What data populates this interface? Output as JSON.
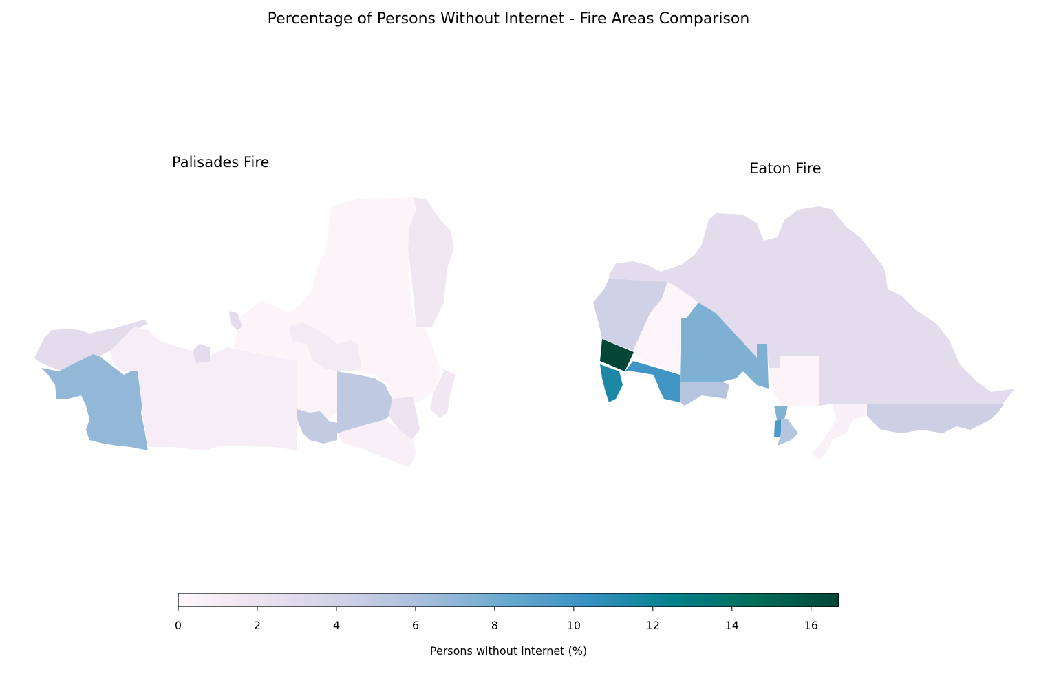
{
  "chart_data": {
    "type": "choropleth-map",
    "title": "Percentage of Persons Without Internet - Fire Areas Comparison",
    "colormap": [
      "#fff7fb",
      "#ece2f0",
      "#d0d1e6",
      "#a6bddb",
      "#67a9cf",
      "#3690c0",
      "#02818a",
      "#016c59",
      "#014636"
    ],
    "range": [
      0,
      16.7
    ],
    "colorbar": {
      "label": "Persons without internet (%)",
      "ticks": [
        0,
        2,
        4,
        6,
        8,
        10,
        12,
        14,
        16
      ],
      "tick_labels": [
        "0",
        "2",
        "4",
        "6",
        "8",
        "10",
        "12",
        "14",
        "16"
      ]
    },
    "maps": [
      {
        "title": "Palisades Fire",
        "region_values": [
          0.3,
          1.6,
          1.5,
          1.3,
          2.8,
          6.9,
          1.0,
          2.8,
          2.8,
          5.0,
          4.8,
          2.0,
          0.8
        ]
      },
      {
        "title": "Eaton Fire",
        "region_values": [
          2.8,
          4.2,
          0.2,
          7.6,
          16.7,
          10.0,
          11.5,
          5.5,
          0.3,
          4.3,
          7.5,
          9.5,
          5.5,
          0.6
        ]
      }
    ]
  }
}
